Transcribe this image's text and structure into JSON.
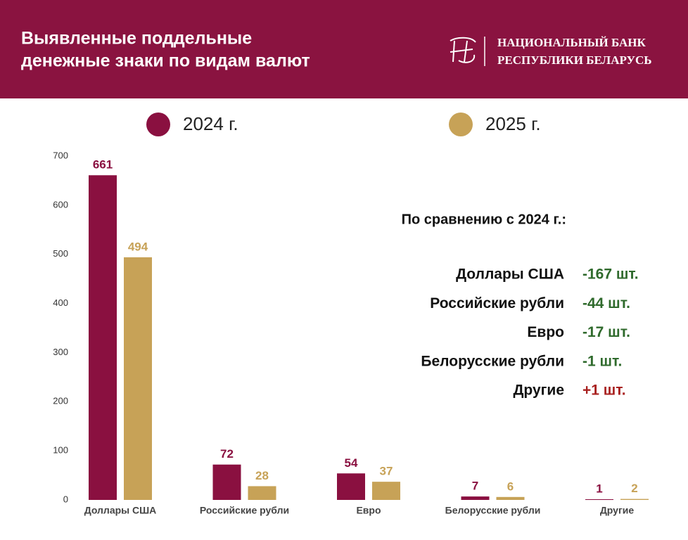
{
  "header": {
    "title_lines": [
      "Выявленные поддельные",
      "денежные знаки по видам валют"
    ],
    "bank_lines": [
      "НАЦИОНАЛЬНЫЙ БАНК",
      "РЕСПУБЛИКИ БЕЛАРУСЬ"
    ]
  },
  "chart_data": {
    "type": "bar",
    "categories": [
      "Доллары США",
      "Российские рубли",
      "Евро",
      "Белорусские рубли",
      "Другие"
    ],
    "series": [
      {
        "name": "2024 г.",
        "color": "#8a1040",
        "values": [
          661,
          72,
          54,
          7,
          1
        ]
      },
      {
        "name": "2025 г.",
        "color": "#c7a257",
        "values": [
          494,
          28,
          37,
          6,
          2
        ]
      }
    ],
    "ylim": [
      0,
      700
    ],
    "yticks": [
      0,
      100,
      200,
      300,
      400,
      500,
      600,
      700
    ],
    "grid": false
  },
  "comparison": {
    "title": "По сравнению с 2024 г.:",
    "rows": [
      {
        "label": "Доллары США",
        "change": "-167 шт.",
        "color": "#2f6a2c"
      },
      {
        "label": "Российские рубли",
        "change": "-44 шт.",
        "color": "#2f6a2c"
      },
      {
        "label": "Евро",
        "change": "-17 шт.",
        "color": "#2f6a2c"
      },
      {
        "label": "Белорусские рубли",
        "change": "-1 шт.",
        "color": "#2f6a2c"
      },
      {
        "label": "Другие",
        "change": "+1 шт.",
        "color": "#a8201f"
      }
    ]
  }
}
